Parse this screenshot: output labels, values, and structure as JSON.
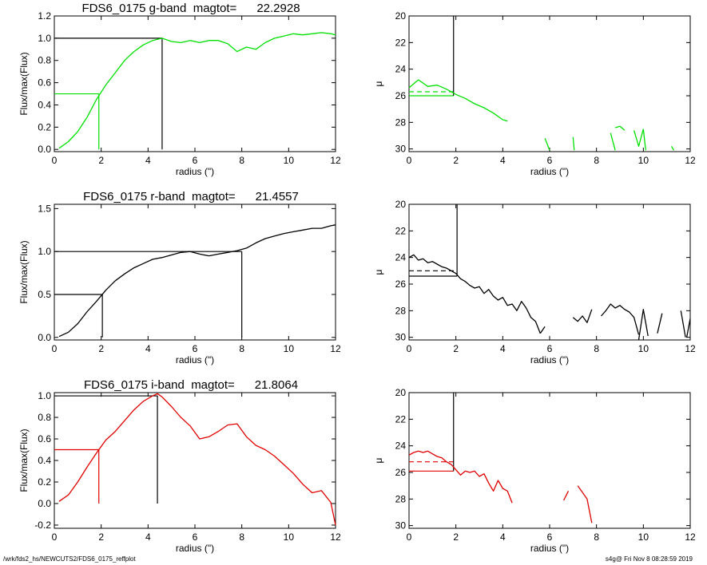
{
  "footer": {
    "left": "/wrk/fds2_hs/NEWCUTS2/FDS6_0175_reffplot",
    "right": "s4g@  Fri Nov  8 08:28:59 2019"
  },
  "chart_data": [
    {
      "type": "line",
      "panel": "g-band growth curve",
      "title": "FDS6_0175 g-band  magtot=      22.2928",
      "xlabel": "radius (\")",
      "ylabel": "Flux/max(Flux)",
      "xlim": [
        0,
        12
      ],
      "ylim": [
        -0.02,
        1.2
      ],
      "xticks": [
        "0",
        "2",
        "4",
        "6",
        "8",
        "10",
        "12"
      ],
      "yticks": [
        "0.0",
        "0.2",
        "0.4",
        "0.6",
        "0.8",
        "1.0",
        "1.2"
      ],
      "color": "#00e000",
      "series": [
        {
          "x": [
            0.2,
            0.6,
            1.0,
            1.4,
            1.8,
            2.2,
            2.6,
            3.0,
            3.4,
            3.8,
            4.2,
            4.6,
            5.0,
            5.4,
            5.8,
            6.2,
            6.6,
            7.0,
            7.4,
            7.8,
            8.2,
            8.6,
            9.0,
            9.4,
            9.8,
            10.2,
            10.6,
            11.0,
            11.4,
            11.8,
            12.0
          ],
          "y": [
            0.01,
            0.07,
            0.16,
            0.29,
            0.45,
            0.58,
            0.69,
            0.8,
            0.88,
            0.94,
            0.98,
            1.0,
            0.97,
            0.96,
            0.98,
            0.96,
            0.98,
            0.98,
            0.95,
            0.88,
            0.92,
            0.9,
            0.96,
            1.0,
            1.02,
            1.04,
            1.03,
            1.04,
            1.05,
            1.04,
            1.03
          ]
        }
      ],
      "reference_lines": [
        {
          "level": 1.0,
          "radius": 4.6,
          "color": "#000000"
        },
        {
          "level": 0.5,
          "radius": 1.9,
          "color": "#00e000"
        }
      ]
    },
    {
      "type": "line",
      "panel": "g-band surface brightness",
      "xlabel": "radius (\")",
      "ylabel": "μ",
      "xlim": [
        0,
        12
      ],
      "ylim": [
        30.2,
        20
      ],
      "y_inverted": true,
      "xticks": [
        "0",
        "2",
        "4",
        "6",
        "8",
        "10",
        "12"
      ],
      "yticks": [
        "20",
        "22",
        "24",
        "26",
        "28",
        "30"
      ],
      "color": "#00e000",
      "series": [
        {
          "x": [
            0.0,
            0.4,
            0.8,
            1.2,
            1.6,
            2.0,
            2.4,
            2.8,
            3.2,
            3.6,
            4.0,
            4.2
          ],
          "y": [
            25.4,
            24.8,
            25.3,
            25.2,
            25.5,
            25.9,
            26.2,
            26.6,
            26.9,
            27.3,
            27.8,
            27.9
          ]
        },
        {
          "x": [
            5.8,
            6.0
          ],
          "y": [
            29.2,
            30.1
          ]
        },
        {
          "x": [
            7.0,
            7.05
          ],
          "y": [
            29.1,
            30.1
          ]
        },
        {
          "x": [
            8.6,
            8.8
          ],
          "y": [
            28.8,
            30.1
          ]
        },
        {
          "x": [
            8.8,
            9.0,
            9.2
          ],
          "y": [
            28.4,
            28.3,
            28.6
          ]
        },
        {
          "x": [
            9.6,
            9.8,
            10.0
          ],
          "y": [
            28.6,
            29.8,
            28.5
          ]
        },
        {
          "x": [
            10.0,
            10.1
          ],
          "y": [
            28.5,
            30.1
          ]
        },
        {
          "x": [
            11.2,
            11.3
          ],
          "y": [
            29.8,
            30.1
          ]
        }
      ],
      "reference_lines": [
        {
          "level": 25.7,
          "style": "dashed",
          "radius": 1.9
        },
        {
          "level": 26.0,
          "style": "solid",
          "radius": 1.9
        }
      ]
    },
    {
      "type": "line",
      "panel": "r-band growth curve",
      "title": "FDS6_0175 r-band  magtot=      21.4557",
      "xlabel": "radius (\")",
      "ylabel": "Flux/max(Flux)",
      "xlim": [
        0,
        12
      ],
      "ylim": [
        -0.03,
        1.55
      ],
      "xticks": [
        "0",
        "2",
        "4",
        "6",
        "8",
        "10",
        "12"
      ],
      "yticks": [
        "0.0",
        "0.5",
        "1.0",
        "1.5"
      ],
      "color": "#000000",
      "series": [
        {
          "x": [
            0.2,
            0.6,
            1.0,
            1.4,
            1.8,
            2.2,
            2.6,
            3.0,
            3.4,
            3.8,
            4.2,
            4.6,
            5.0,
            5.4,
            5.8,
            6.2,
            6.6,
            7.0,
            7.4,
            7.8,
            8.2,
            8.6,
            9.0,
            9.4,
            9.8,
            10.2,
            10.6,
            11.0,
            11.4,
            11.8,
            12.0
          ],
          "y": [
            0.01,
            0.06,
            0.16,
            0.3,
            0.42,
            0.55,
            0.66,
            0.74,
            0.81,
            0.86,
            0.91,
            0.93,
            0.96,
            0.99,
            1.0,
            0.97,
            0.95,
            0.97,
            0.99,
            1.01,
            1.04,
            1.1,
            1.15,
            1.18,
            1.21,
            1.23,
            1.25,
            1.27,
            1.27,
            1.3,
            1.31
          ]
        }
      ],
      "reference_lines": [
        {
          "level": 1.0,
          "radius": 8.0,
          "color": "#000000"
        },
        {
          "level": 0.5,
          "radius": 2.05,
          "color": "#000000"
        }
      ]
    },
    {
      "type": "line",
      "panel": "r-band surface brightness",
      "xlabel": "radius (\")",
      "ylabel": "μ",
      "xlim": [
        0,
        12
      ],
      "ylim": [
        30.2,
        20
      ],
      "y_inverted": true,
      "xticks": [
        "0",
        "2",
        "4",
        "6",
        "8",
        "10",
        "12"
      ],
      "yticks": [
        "20",
        "22",
        "24",
        "26",
        "28",
        "30"
      ],
      "color": "#000000",
      "series": [
        {
          "x": [
            0.0,
            0.2,
            0.4,
            0.6,
            0.8,
            1.0,
            1.2,
            1.4,
            1.6,
            1.8,
            2.0,
            2.2,
            2.4,
            2.6,
            2.8,
            3.0,
            3.2,
            3.4,
            3.6,
            3.8,
            4.0,
            4.2,
            4.4,
            4.6,
            4.8,
            5.0,
            5.2,
            5.4,
            5.6
          ],
          "y": [
            24.0,
            23.8,
            24.2,
            24.1,
            24.4,
            24.3,
            24.5,
            24.7,
            24.8,
            25.0,
            25.2,
            25.6,
            25.8,
            26.1,
            26.3,
            26.2,
            26.7,
            26.4,
            26.9,
            27.2,
            27.0,
            27.6,
            27.5,
            28.0,
            27.3,
            27.8,
            28.5,
            28.8,
            29.7
          ]
        },
        {
          "x": [
            5.6,
            5.8
          ],
          "y": [
            29.7,
            29.2
          ]
        },
        {
          "x": [
            7.0,
            7.2,
            7.4,
            7.6,
            7.8
          ],
          "y": [
            28.5,
            28.8,
            28.4,
            28.9,
            27.9
          ]
        },
        {
          "x": [
            8.2,
            8.4,
            8.6,
            8.8,
            9.0,
            9.2,
            9.4,
            9.6,
            9.8
          ],
          "y": [
            28.4,
            28.0,
            27.5,
            27.8,
            27.6,
            27.9,
            28.1,
            28.5,
            29.8
          ]
        },
        {
          "x": [
            9.8,
            10.0,
            10.2
          ],
          "y": [
            30.2,
            27.9,
            29.9
          ]
        },
        {
          "x": [
            10.6,
            10.8
          ],
          "y": [
            29.7,
            28.2
          ]
        },
        {
          "x": [
            11.6,
            11.8
          ],
          "y": [
            28.0,
            30.0
          ]
        },
        {
          "x": [
            11.85,
            12.0
          ],
          "y": [
            30.0,
            28.6
          ]
        }
      ],
      "reference_lines": [
        {
          "level": 25.0,
          "style": "dashed",
          "radius": 2.05
        },
        {
          "level": 25.4,
          "style": "solid",
          "radius": 2.05
        }
      ]
    },
    {
      "type": "line",
      "panel": "i-band growth curve",
      "title": "FDS6_0175 i-band  magtot=      21.8064",
      "xlabel": "radius (\")",
      "ylabel": "Flux/max(Flux)",
      "xlim": [
        0,
        12
      ],
      "ylim": [
        -0.23,
        1.03
      ],
      "xticks": [
        "0",
        "2",
        "4",
        "6",
        "8",
        "10",
        "12"
      ],
      "yticks": [
        "-0.2",
        "0.0",
        "0.2",
        "0.4",
        "0.6",
        "0.8",
        "1.0"
      ],
      "color": "#e00000",
      "series": [
        {
          "x": [
            0.2,
            0.6,
            1.0,
            1.4,
            1.8,
            2.2,
            2.6,
            3.0,
            3.4,
            3.8,
            4.2,
            4.4,
            4.6,
            5.0,
            5.4,
            5.8,
            6.2,
            6.6,
            7.0,
            7.4,
            7.8,
            8.2,
            8.6,
            9.0,
            9.4,
            9.8,
            10.2,
            10.6,
            11.0,
            11.4,
            11.8,
            12.0
          ],
          "y": [
            0.02,
            0.08,
            0.2,
            0.34,
            0.47,
            0.59,
            0.67,
            0.77,
            0.87,
            0.95,
            1.0,
            1.02,
            0.99,
            0.9,
            0.8,
            0.72,
            0.6,
            0.62,
            0.67,
            0.73,
            0.74,
            0.62,
            0.54,
            0.5,
            0.44,
            0.36,
            0.28,
            0.18,
            0.1,
            0.12,
            0.01,
            -0.2
          ]
        }
      ],
      "reference_lines": [
        {
          "level": 1.0,
          "radius": 4.4,
          "color": "#000000"
        },
        {
          "level": 0.5,
          "radius": 1.9,
          "color": "#e00000"
        }
      ]
    },
    {
      "type": "line",
      "panel": "i-band surface brightness",
      "xlabel": "radius (\")",
      "ylabel": "μ",
      "xlim": [
        0,
        12
      ],
      "ylim": [
        30.2,
        20
      ],
      "y_inverted": true,
      "xticks": [
        "0",
        "2",
        "4",
        "6",
        "8",
        "10",
        "12"
      ],
      "yticks": [
        "20",
        "22",
        "24",
        "26",
        "28",
        "30"
      ],
      "color": "#e00000",
      "series": [
        {
          "x": [
            0.0,
            0.2,
            0.4,
            0.6,
            0.8,
            1.0,
            1.2,
            1.4,
            1.6,
            1.8,
            2.0,
            2.2,
            2.4,
            2.6,
            2.8,
            3.0,
            3.2,
            3.4,
            3.6,
            3.8,
            4.0,
            4.2,
            4.4
          ],
          "y": [
            24.7,
            24.5,
            24.4,
            24.5,
            24.4,
            24.6,
            24.8,
            24.9,
            25.2,
            25.4,
            25.8,
            26.2,
            25.9,
            26.0,
            25.9,
            26.3,
            26.1,
            26.8,
            27.4,
            26.6,
            27.2,
            27.4,
            28.3
          ]
        },
        {
          "x": [
            6.6,
            6.8
          ],
          "y": [
            28.1,
            27.4
          ]
        },
        {
          "x": [
            7.2,
            7.4,
            7.6,
            7.8
          ],
          "y": [
            27.0,
            27.5,
            28.0,
            29.8
          ]
        }
      ],
      "reference_lines": [
        {
          "level": 25.2,
          "style": "dashed",
          "radius": 1.9
        },
        {
          "level": 25.9,
          "style": "solid",
          "radius": 1.9
        }
      ]
    }
  ]
}
